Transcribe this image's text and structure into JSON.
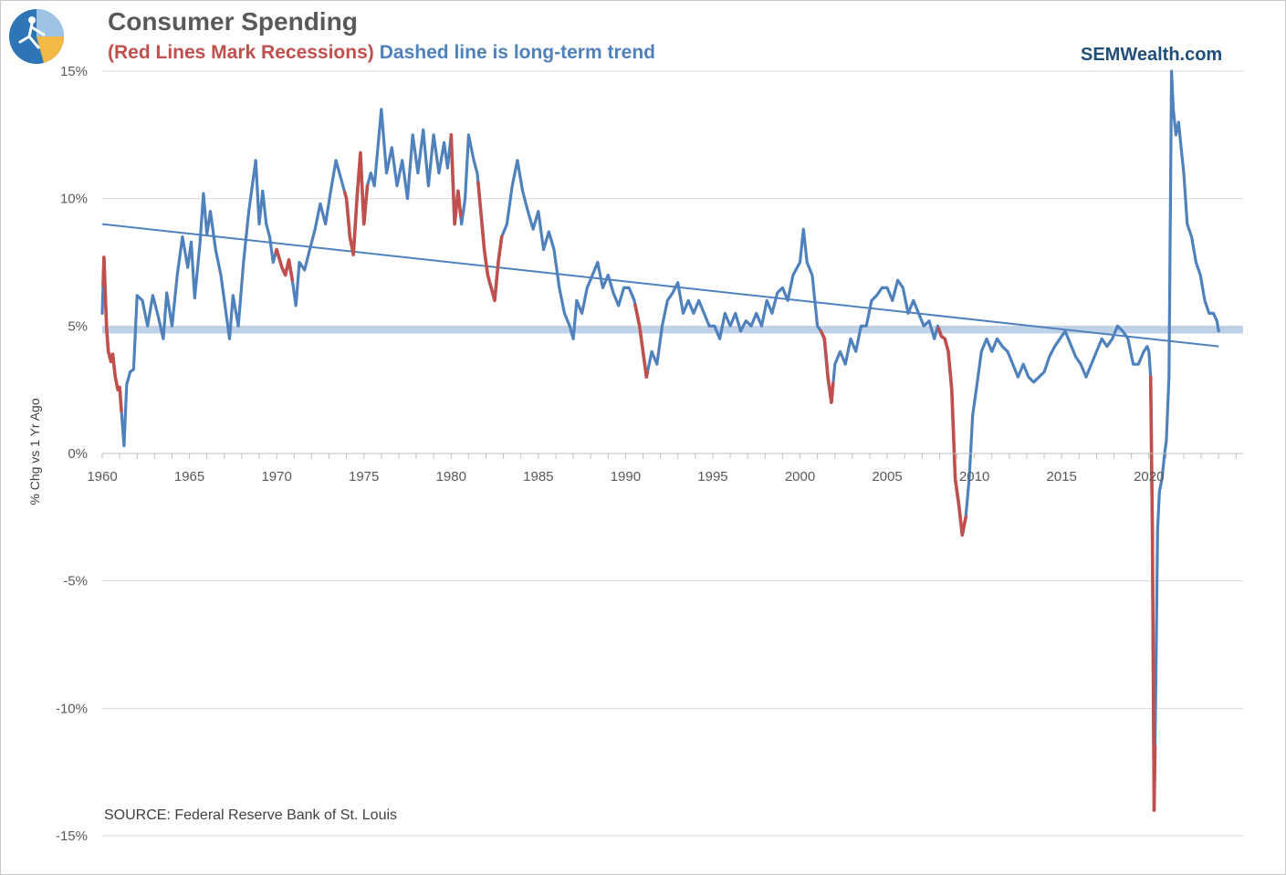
{
  "header": {
    "title": "Consumer Spending",
    "subtitle_red": "(Red Lines Mark Recessions)",
    "subtitle_blue": "Dashed line is long-term trend",
    "brand": "SEMWealth.com"
  },
  "colors": {
    "series": "#4f81bd",
    "recession": "#c0504d",
    "trend": "#4f81bd",
    "band": "#b8cce4",
    "grid": "#d9d9d9",
    "title": "#595959",
    "brand": "#1f4e79"
  },
  "icons": {
    "logo": "sem-logo-icon"
  },
  "chart_data": {
    "type": "line",
    "title": "Consumer Spending",
    "ylabel": "% Chg vs 1 Yr Ago",
    "source": "SOURCE:  Federal Reserve Bank of St. Louis",
    "xlim": [
      1960,
      2025.4
    ],
    "ylim": [
      -15,
      15
    ],
    "x_ticks": [
      "1960",
      "1965",
      "1970",
      "1975",
      "1980",
      "1985",
      "1990",
      "1995",
      "2000",
      "2005",
      "2010",
      "2015",
      "2020"
    ],
    "y_ticks": [
      "15%",
      "10%",
      "5%",
      "0%",
      "-5%",
      "-10%",
      "-15%"
    ],
    "grid": true,
    "legend": "none",
    "series": [
      {
        "points": [
          [
            1960.0,
            5.5
          ],
          [
            1960.1,
            7.7
          ],
          [
            1960.25,
            4.9
          ],
          [
            1960.35,
            4.0
          ],
          [
            1960.5,
            3.6
          ],
          [
            1960.6,
            3.9
          ],
          [
            1960.75,
            3.0
          ],
          [
            1960.9,
            2.5
          ],
          [
            1961.0,
            2.6
          ],
          [
            1961.15,
            1.2
          ],
          [
            1961.25,
            0.3
          ],
          [
            1961.4,
            2.7
          ],
          [
            1961.6,
            3.2
          ],
          [
            1961.8,
            3.3
          ],
          [
            1962.0,
            6.2
          ],
          [
            1962.3,
            6.0
          ],
          [
            1962.6,
            5.0
          ],
          [
            1962.9,
            6.2
          ],
          [
            1963.2,
            5.4
          ],
          [
            1963.5,
            4.5
          ],
          [
            1963.7,
            6.3
          ],
          [
            1964.0,
            5.0
          ],
          [
            1964.3,
            7.0
          ],
          [
            1964.6,
            8.5
          ],
          [
            1964.9,
            7.3
          ],
          [
            1965.1,
            8.3
          ],
          [
            1965.3,
            6.1
          ],
          [
            1965.6,
            8.2
          ],
          [
            1965.8,
            10.2
          ],
          [
            1966.0,
            8.6
          ],
          [
            1966.2,
            9.5
          ],
          [
            1966.5,
            8.0
          ],
          [
            1966.8,
            7.0
          ],
          [
            1967.1,
            5.5
          ],
          [
            1967.3,
            4.5
          ],
          [
            1967.5,
            6.2
          ],
          [
            1967.8,
            5.0
          ],
          [
            1968.1,
            7.5
          ],
          [
            1968.4,
            9.5
          ],
          [
            1968.6,
            10.5
          ],
          [
            1968.8,
            11.5
          ],
          [
            1969.0,
            9.0
          ],
          [
            1969.2,
            10.3
          ],
          [
            1969.4,
            9.0
          ],
          [
            1969.6,
            8.5
          ],
          [
            1969.8,
            7.5
          ],
          [
            1970.0,
            8.0
          ],
          [
            1970.3,
            7.3
          ],
          [
            1970.5,
            7.0
          ],
          [
            1970.7,
            7.6
          ],
          [
            1970.9,
            6.8
          ],
          [
            1971.1,
            5.8
          ],
          [
            1971.3,
            7.5
          ],
          [
            1971.6,
            7.2
          ],
          [
            1971.9,
            8.0
          ],
          [
            1972.2,
            8.8
          ],
          [
            1972.5,
            9.8
          ],
          [
            1972.8,
            9.0
          ],
          [
            1973.1,
            10.3
          ],
          [
            1973.4,
            11.5
          ],
          [
            1973.6,
            11.0
          ],
          [
            1973.8,
            10.5
          ],
          [
            1974.0,
            10.0
          ],
          [
            1974.2,
            8.5
          ],
          [
            1974.4,
            7.8
          ],
          [
            1974.6,
            10.0
          ],
          [
            1974.8,
            11.8
          ],
          [
            1975.0,
            9.0
          ],
          [
            1975.2,
            10.5
          ],
          [
            1975.4,
            11.0
          ],
          [
            1975.6,
            10.5
          ],
          [
            1975.8,
            12.0
          ],
          [
            1976.0,
            13.5
          ],
          [
            1976.3,
            11.0
          ],
          [
            1976.6,
            12.0
          ],
          [
            1976.9,
            10.5
          ],
          [
            1977.2,
            11.5
          ],
          [
            1977.5,
            10.0
          ],
          [
            1977.8,
            12.5
          ],
          [
            1978.1,
            11.0
          ],
          [
            1978.4,
            12.7
          ],
          [
            1978.7,
            10.5
          ],
          [
            1979.0,
            12.5
          ],
          [
            1979.3,
            11.0
          ],
          [
            1979.6,
            12.2
          ],
          [
            1979.8,
            11.2
          ],
          [
            1980.0,
            12.5
          ],
          [
            1980.2,
            9.0
          ],
          [
            1980.4,
            10.3
          ],
          [
            1980.6,
            9.0
          ],
          [
            1980.8,
            10.0
          ],
          [
            1981.0,
            12.5
          ],
          [
            1981.3,
            11.5
          ],
          [
            1981.5,
            11.0
          ],
          [
            1981.7,
            9.5
          ],
          [
            1981.9,
            8.0
          ],
          [
            1982.1,
            7.0
          ],
          [
            1982.3,
            6.5
          ],
          [
            1982.5,
            6.0
          ],
          [
            1982.7,
            7.5
          ],
          [
            1982.9,
            8.5
          ],
          [
            1983.2,
            9.0
          ],
          [
            1983.5,
            10.5
          ],
          [
            1983.8,
            11.5
          ],
          [
            1984.1,
            10.3
          ],
          [
            1984.4,
            9.5
          ],
          [
            1984.7,
            8.8
          ],
          [
            1985.0,
            9.5
          ],
          [
            1985.3,
            8.0
          ],
          [
            1985.6,
            8.7
          ],
          [
            1985.9,
            8.0
          ],
          [
            1986.2,
            6.5
          ],
          [
            1986.5,
            5.5
          ],
          [
            1986.8,
            5.0
          ],
          [
            1987.0,
            4.5
          ],
          [
            1987.2,
            6.0
          ],
          [
            1987.5,
            5.5
          ],
          [
            1987.8,
            6.5
          ],
          [
            1988.1,
            7.0
          ],
          [
            1988.4,
            7.5
          ],
          [
            1988.7,
            6.5
          ],
          [
            1989.0,
            7.0
          ],
          [
            1989.3,
            6.3
          ],
          [
            1989.6,
            5.8
          ],
          [
            1989.9,
            6.5
          ],
          [
            1990.2,
            6.5
          ],
          [
            1990.5,
            6.0
          ],
          [
            1990.8,
            5.0
          ],
          [
            1991.0,
            4.0
          ],
          [
            1991.2,
            3.0
          ],
          [
            1991.5,
            4.0
          ],
          [
            1991.8,
            3.5
          ],
          [
            1992.1,
            5.0
          ],
          [
            1992.4,
            6.0
          ],
          [
            1992.7,
            6.3
          ],
          [
            1993.0,
            6.7
          ],
          [
            1993.3,
            5.5
          ],
          [
            1993.6,
            6.0
          ],
          [
            1993.9,
            5.5
          ],
          [
            1994.2,
            6.0
          ],
          [
            1994.5,
            5.5
          ],
          [
            1994.8,
            5.0
          ],
          [
            1995.1,
            5.0
          ],
          [
            1995.4,
            4.5
          ],
          [
            1995.7,
            5.5
          ],
          [
            1996.0,
            5.0
          ],
          [
            1996.3,
            5.5
          ],
          [
            1996.6,
            4.8
          ],
          [
            1996.9,
            5.2
          ],
          [
            1997.2,
            5.0
          ],
          [
            1997.5,
            5.5
          ],
          [
            1997.8,
            5.0
          ],
          [
            1998.1,
            6.0
          ],
          [
            1998.4,
            5.5
          ],
          [
            1998.7,
            6.3
          ],
          [
            1999.0,
            6.5
          ],
          [
            1999.3,
            6.0
          ],
          [
            1999.6,
            7.0
          ],
          [
            2000.0,
            7.5
          ],
          [
            2000.2,
            8.8
          ],
          [
            2000.4,
            7.5
          ],
          [
            2000.7,
            7.0
          ],
          [
            2001.0,
            5.0
          ],
          [
            2001.2,
            4.8
          ],
          [
            2001.4,
            4.5
          ],
          [
            2001.6,
            3.0
          ],
          [
            2001.8,
            2.0
          ],
          [
            2002.0,
            3.5
          ],
          [
            2002.3,
            4.0
          ],
          [
            2002.6,
            3.5
          ],
          [
            2002.9,
            4.5
          ],
          [
            2003.2,
            4.0
          ],
          [
            2003.5,
            5.0
          ],
          [
            2003.8,
            5.0
          ],
          [
            2004.1,
            6.0
          ],
          [
            2004.4,
            6.2
          ],
          [
            2004.7,
            6.5
          ],
          [
            2005.0,
            6.5
          ],
          [
            2005.3,
            6.0
          ],
          [
            2005.6,
            6.8
          ],
          [
            2005.9,
            6.5
          ],
          [
            2006.2,
            5.5
          ],
          [
            2006.5,
            6.0
          ],
          [
            2006.8,
            5.5
          ],
          [
            2007.1,
            5.0
          ],
          [
            2007.4,
            5.2
          ],
          [
            2007.7,
            4.5
          ],
          [
            2007.9,
            5.0
          ],
          [
            2008.1,
            4.6
          ],
          [
            2008.3,
            4.5
          ],
          [
            2008.5,
            4.0
          ],
          [
            2008.7,
            2.5
          ],
          [
            2008.9,
            -1.0
          ],
          [
            2009.1,
            -2.0
          ],
          [
            2009.3,
            -3.2
          ],
          [
            2009.5,
            -2.5
          ],
          [
            2009.7,
            -1.0
          ],
          [
            2009.9,
            1.5
          ],
          [
            2010.1,
            2.5
          ],
          [
            2010.4,
            4.0
          ],
          [
            2010.7,
            4.5
          ],
          [
            2011.0,
            4.0
          ],
          [
            2011.3,
            4.5
          ],
          [
            2011.6,
            4.2
          ],
          [
            2011.9,
            4.0
          ],
          [
            2012.2,
            3.5
          ],
          [
            2012.5,
            3.0
          ],
          [
            2012.8,
            3.5
          ],
          [
            2013.1,
            3.0
          ],
          [
            2013.4,
            2.8
          ],
          [
            2013.7,
            3.0
          ],
          [
            2014.0,
            3.2
          ],
          [
            2014.3,
            3.8
          ],
          [
            2014.6,
            4.2
          ],
          [
            2014.9,
            4.5
          ],
          [
            2015.2,
            4.8
          ],
          [
            2015.5,
            4.3
          ],
          [
            2015.8,
            3.8
          ],
          [
            2016.1,
            3.5
          ],
          [
            2016.4,
            3.0
          ],
          [
            2016.7,
            3.5
          ],
          [
            2017.0,
            4.0
          ],
          [
            2017.3,
            4.5
          ],
          [
            2017.6,
            4.2
          ],
          [
            2017.9,
            4.5
          ],
          [
            2018.2,
            5.0
          ],
          [
            2018.5,
            4.8
          ],
          [
            2018.8,
            4.5
          ],
          [
            2019.1,
            3.5
          ],
          [
            2019.4,
            3.5
          ],
          [
            2019.7,
            4.0
          ],
          [
            2019.9,
            4.2
          ],
          [
            2020.0,
            4.0
          ],
          [
            2020.1,
            3.0
          ],
          [
            2020.2,
            -3.0
          ],
          [
            2020.3,
            -14.0
          ],
          [
            2020.4,
            -9.0
          ],
          [
            2020.5,
            -3.0
          ],
          [
            2020.6,
            -1.5
          ],
          [
            2020.75,
            -1.0
          ],
          [
            2020.9,
            0.0
          ],
          [
            2021.0,
            0.5
          ],
          [
            2021.15,
            3.0
          ],
          [
            2021.3,
            15.0
          ],
          [
            2021.4,
            13.5
          ],
          [
            2021.55,
            12.5
          ],
          [
            2021.7,
            13.0
          ],
          [
            2021.85,
            12.0
          ],
          [
            2022.0,
            11.0
          ],
          [
            2022.2,
            9.0
          ],
          [
            2022.45,
            8.5
          ],
          [
            2022.7,
            7.5
          ],
          [
            2022.95,
            7.0
          ],
          [
            2023.2,
            6.0
          ],
          [
            2023.45,
            5.5
          ],
          [
            2023.7,
            5.5
          ],
          [
            2023.9,
            5.2
          ],
          [
            2024.0,
            4.8
          ]
        ]
      }
    ],
    "recessions": [
      [
        1960.05,
        1961.1
      ],
      [
        1969.95,
        1970.9
      ],
      [
        1973.9,
        1975.2
      ],
      [
        1980.0,
        1980.55
      ],
      [
        1981.55,
        1982.9
      ],
      [
        1990.55,
        1991.25
      ],
      [
        2001.2,
        2001.9
      ],
      [
        2007.95,
        2009.5
      ],
      [
        2020.1,
        2020.35
      ]
    ],
    "trend": {
      "start": [
        1960.0,
        9.0
      ],
      "end": [
        2024.0,
        4.2
      ]
    },
    "band": {
      "value": 4.85
    }
  }
}
